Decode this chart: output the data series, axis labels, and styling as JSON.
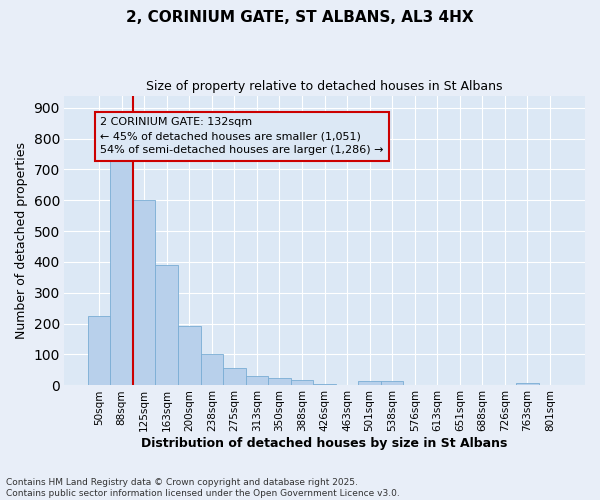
{
  "title_line1": "2, CORINIUM GATE, ST ALBANS, AL3 4HX",
  "title_line2": "Size of property relative to detached houses in St Albans",
  "xlabel": "Distribution of detached houses by size in St Albans",
  "ylabel": "Number of detached properties",
  "categories": [
    "50sqm",
    "88sqm",
    "125sqm",
    "163sqm",
    "200sqm",
    "238sqm",
    "275sqm",
    "313sqm",
    "350sqm",
    "388sqm",
    "426sqm",
    "463sqm",
    "501sqm",
    "538sqm",
    "576sqm",
    "613sqm",
    "651sqm",
    "688sqm",
    "726sqm",
    "763sqm",
    "801sqm"
  ],
  "values": [
    225,
    735,
    600,
    390,
    193,
    100,
    57,
    30,
    22,
    18,
    5,
    2,
    12,
    12,
    2,
    2,
    0,
    0,
    0,
    8,
    0
  ],
  "bar_color": "#b8d0eb",
  "bar_edgecolor": "#7aadd4",
  "vline_color": "#cc0000",
  "vline_x_index": 2,
  "annotation_text": "2 CORINIUM GATE: 132sqm\n← 45% of detached houses are smaller (1,051)\n54% of semi-detached houses are larger (1,286) →",
  "box_color": "#cc0000",
  "ylim": [
    0,
    940
  ],
  "yticks": [
    0,
    100,
    200,
    300,
    400,
    500,
    600,
    700,
    800,
    900
  ],
  "background_color": "#e8eef8",
  "plot_bg_color": "#dce8f5",
  "grid_color": "#ffffff",
  "footer_line1": "Contains HM Land Registry data © Crown copyright and database right 2025.",
  "footer_line2": "Contains public sector information licensed under the Open Government Licence v3.0."
}
